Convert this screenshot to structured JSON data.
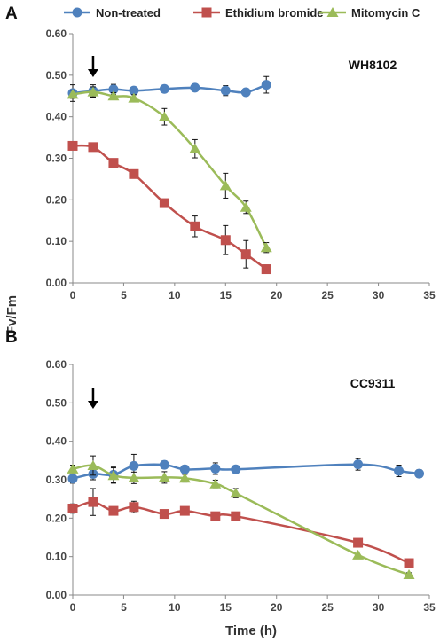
{
  "figure": {
    "ylabel": "Fv/Fm",
    "xlabel": "Time (h)",
    "legend": [
      "Non-treated",
      "Ethidium bromide",
      "Mitomycin C"
    ],
    "colors": {
      "Non-treated": "#4f81bd",
      "Ethidium bromide": "#c0504d",
      "Mitomycin C": "#9bbb59"
    }
  },
  "chart_data": [
    {
      "type": "line",
      "panel_label": "A",
      "strain": "WH8102",
      "xlim": [
        0,
        35
      ],
      "ylim": [
        0,
        0.6
      ],
      "xticks": [
        "0",
        "5",
        "10",
        "15",
        "20",
        "25",
        "30",
        "35"
      ],
      "yticks": [
        "0.00",
        "0.10",
        "0.20",
        "0.30",
        "0.40",
        "0.50",
        "0.60"
      ],
      "arrow_x": 2,
      "series": [
        {
          "name": "Non-treated",
          "marker": "circle",
          "x": [
            0,
            2,
            4,
            6,
            9,
            12,
            15,
            17,
            19
          ],
          "y": [
            0.457,
            0.462,
            0.466,
            0.463,
            0.467,
            0.47,
            0.463,
            0.459,
            0.477
          ],
          "err": [
            0.02,
            0.015,
            0.012,
            0.008,
            0.008,
            0.007,
            0.012,
            0.008,
            0.02
          ]
        },
        {
          "name": "Ethidium bromide",
          "marker": "square",
          "x": [
            0,
            2,
            4,
            6,
            9,
            12,
            15,
            17,
            19
          ],
          "y": [
            0.33,
            0.327,
            0.289,
            0.262,
            0.192,
            0.136,
            0.103,
            0.069,
            0.033
          ],
          "err": [
            0.008,
            0.008,
            0.008,
            0.01,
            0.008,
            0.025,
            0.035,
            0.033,
            0.01
          ]
        },
        {
          "name": "Mitomycin C",
          "marker": "triangle",
          "x": [
            0,
            2,
            4,
            6,
            9,
            12,
            15,
            17,
            19
          ],
          "y": [
            0.454,
            0.46,
            0.45,
            0.445,
            0.4,
            0.323,
            0.234,
            0.182,
            0.085
          ],
          "err": [
            0.01,
            0.012,
            0.008,
            0.008,
            0.02,
            0.022,
            0.03,
            0.015,
            0.012
          ]
        }
      ]
    },
    {
      "type": "line",
      "panel_label": "B",
      "strain": "CC9311",
      "xlim": [
        0,
        35
      ],
      "ylim": [
        0,
        0.6
      ],
      "xticks": [
        "0",
        "5",
        "10",
        "15",
        "20",
        "25",
        "30",
        "35"
      ],
      "yticks": [
        "0.00",
        "0.10",
        "0.20",
        "0.30",
        "0.40",
        "0.50",
        "0.60"
      ],
      "arrow_x": 2,
      "series": [
        {
          "name": "Non-treated",
          "marker": "circle",
          "x": [
            0,
            2,
            4,
            6,
            9,
            11,
            14,
            16,
            28,
            32,
            34
          ],
          "y": [
            0.303,
            0.315,
            0.313,
            0.336,
            0.339,
            0.327,
            0.329,
            0.327,
            0.34,
            0.323,
            0.316
          ],
          "err": [
            0.012,
            0.015,
            0.02,
            0.03,
            0.01,
            0.01,
            0.015,
            0.005,
            0.015,
            0.015,
            0.01
          ]
        },
        {
          "name": "Ethidium bromide",
          "marker": "square",
          "x": [
            0,
            2,
            4,
            6,
            9,
            11,
            14,
            16,
            28,
            33
          ],
          "y": [
            0.225,
            0.242,
            0.219,
            0.229,
            0.211,
            0.219,
            0.205,
            0.205,
            0.136,
            0.083
          ],
          "err": [
            0.012,
            0.035,
            0.01,
            0.015,
            0.008,
            0.008,
            0.008,
            0.006,
            0.006,
            0.008
          ]
        },
        {
          "name": "Mitomycin C",
          "marker": "triangle",
          "x": [
            0,
            2,
            4,
            6,
            9,
            11,
            14,
            16,
            28,
            33
          ],
          "y": [
            0.328,
            0.337,
            0.311,
            0.305,
            0.306,
            0.304,
            0.289,
            0.265,
            0.104,
            0.053
          ],
          "err": [
            0.01,
            0.025,
            0.02,
            0.015,
            0.015,
            0.01,
            0.01,
            0.012,
            0.008,
            0.005
          ]
        }
      ]
    }
  ]
}
